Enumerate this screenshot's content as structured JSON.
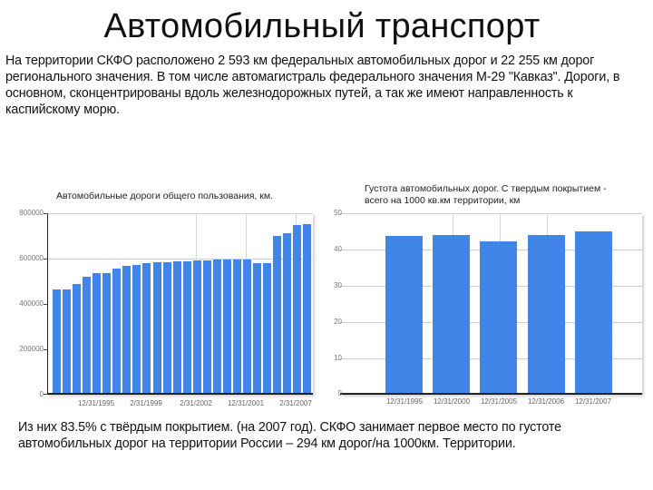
{
  "slide": {
    "title": "Автомобильный транспорт",
    "intro": "На территории СКФО расположено 2 593 км федеральных автомобильных дорог и 22 255 км дорог регионального значения. В том числе автомагистраль федерального значения М-29 \"Кавказ\". Дороги, в основном, сконцентрированы вдоль железнодорожных путей, а так же имеют направленность к каспийскому морю.",
    "footer": "Из них 83.5% с твёрдым покрытием. (на 2007 год). СКФО занимает первое место по густоте автомобильных дорог на территории России – 294 км дорог/на 1000км. Территории."
  },
  "colors": {
    "bar": "#4185e8",
    "grid": "#d0d0d0",
    "axis": "#222222"
  },
  "chart_data": [
    {
      "type": "bar",
      "title": "Автомобильные дороги общего пользования, км.",
      "xlabel": "",
      "ylabel": "",
      "ylim": [
        0,
        800000
      ],
      "yticks": [
        "800000",
        "600000",
        "400000",
        "200000",
        "0"
      ],
      "xtick_labels": [
        "12/31/1995",
        "2/31/1999",
        "2/31/2002",
        "12/31/2001",
        "2/31/2007"
      ],
      "grid": true,
      "legend": null,
      "values": [
        464000,
        464000,
        488000,
        520000,
        536000,
        536000,
        556000,
        568000,
        572000,
        580000,
        583000,
        583000,
        587000,
        587000,
        591000,
        591000,
        595000,
        595000,
        597000,
        597000,
        580000,
        580000,
        700000,
        711000,
        747000,
        752000
      ]
    },
    {
      "type": "bar",
      "title": "Густота автомобильных дорог. С твердым покрытием - всего на 1000 кв.км территории, км",
      "xlabel": "",
      "ylabel": "",
      "ylim": [
        0,
        50
      ],
      "yticks": [
        "50",
        "40",
        "30",
        "20",
        "10",
        "0"
      ],
      "categories": [
        "12/31/1995",
        "12/31/2000",
        "12/31/2005",
        "12/31/2006",
        "12/31/2007"
      ],
      "grid": true,
      "legend": null,
      "values": [
        43.8,
        44.0,
        42.3,
        44.0,
        45.1
      ]
    }
  ]
}
